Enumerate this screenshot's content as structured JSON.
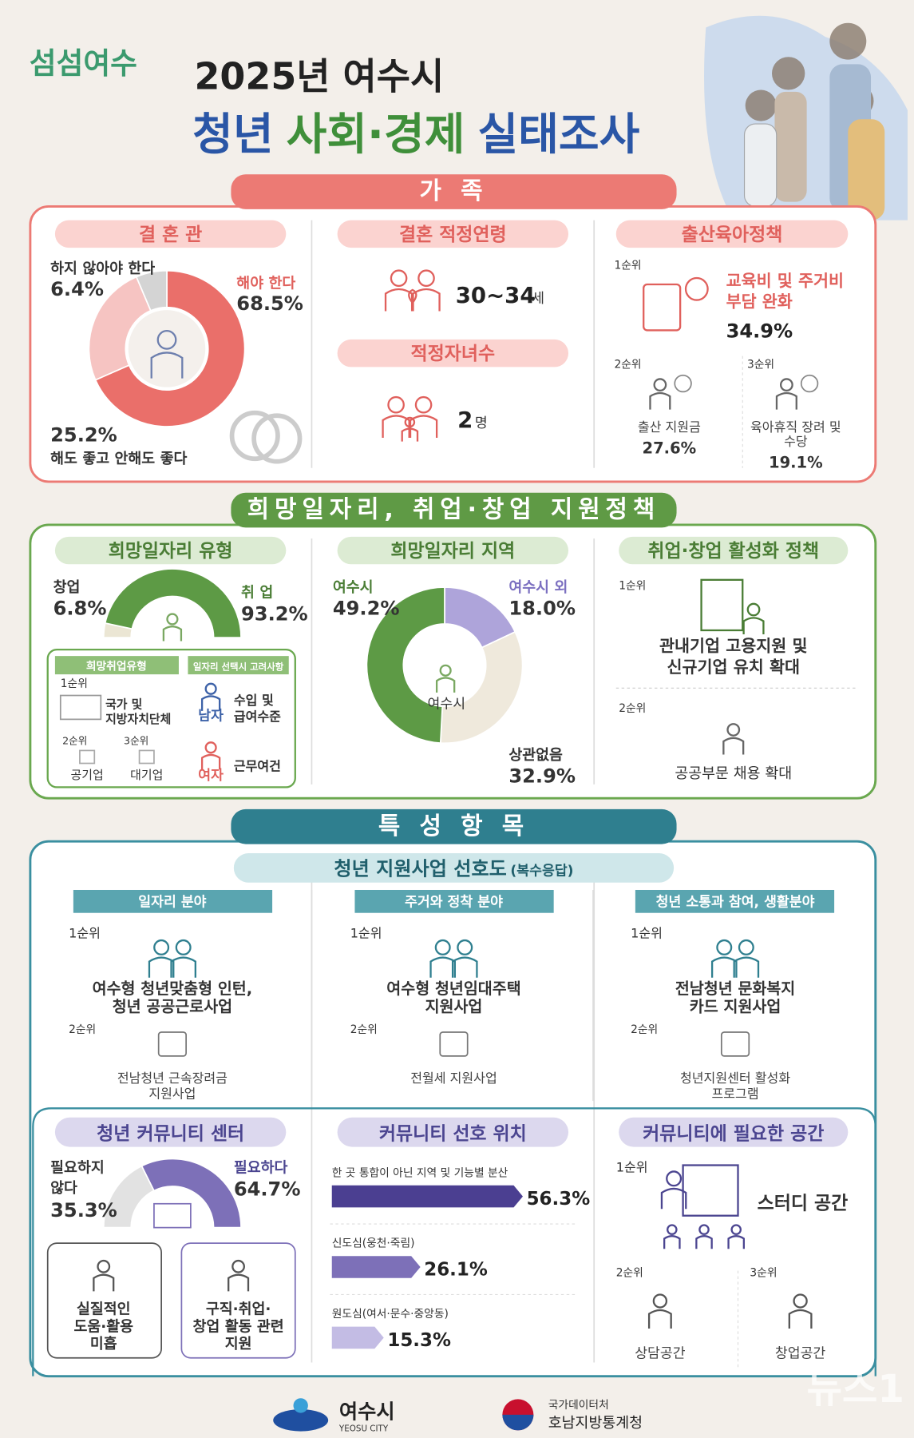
{
  "header": {
    "logo": "섬섬여수",
    "title_line1": "2025년 여수시",
    "title_line2": [
      {
        "text": "청년",
        "color": "#2a56a6"
      },
      {
        "text": "사회·경제",
        "color": "#3f8f3a"
      },
      {
        "text": "실태조사",
        "color": "#2a56a6"
      }
    ]
  },
  "family": {
    "title": "가 족",
    "marriage_view": {
      "title": "결 혼 관",
      "slices": [
        {
          "label": [
            "해야 한다"
          ],
          "value": 68.5,
          "value_label": "68.5%",
          "color": "#ea6f6a"
        },
        {
          "label": [
            "해도 좋고 안해도 좋다"
          ],
          "value": 25.2,
          "value_label": "25.2%",
          "color": "#f6c4c2"
        },
        {
          "label": [
            "하지 않아야 한다"
          ],
          "value": 6.4,
          "value_label": "6.4%",
          "color": "#d4d4d4"
        }
      ]
    },
    "marriage_age": {
      "title": "결혼 적정연령",
      "value": "30~34",
      "unit": "세"
    },
    "children": {
      "title": "적정자녀수",
      "value": 2,
      "unit": "명"
    },
    "birth_policy": {
      "title": "출산육아정책",
      "items": [
        {
          "rank": "1순위",
          "label": [
            "교육비 및 주거비",
            "부담 완화"
          ],
          "value": 34.9,
          "value_label": "34.9%"
        },
        {
          "rank": "2순위",
          "label": [
            "출산 지원금"
          ],
          "value": 27.6,
          "value_label": "27.6%"
        },
        {
          "rank": "3순위",
          "label": [
            "육아휴직 장려 및",
            "수당"
          ],
          "value": 19.1,
          "value_label": "19.1%"
        }
      ]
    }
  },
  "jobs": {
    "title": "희망일자리, 취업·창업 지원정책",
    "job_type": {
      "title": "희망일자리 유형",
      "slices": [
        {
          "label": [
            "창업"
          ],
          "value": 6.8,
          "value_label": "6.8%",
          "color": "#ebe6d4"
        },
        {
          "label": [
            "취 업"
          ],
          "value": 93.2,
          "value_label": "93.2%",
          "color": "#5d9a45"
        }
      ],
      "preferred_employer": {
        "title": "희망취업유형",
        "items": [
          {
            "rank": "1순위",
            "label": [
              "국가 및",
              "지방자치단체"
            ]
          },
          {
            "rank": "2순위",
            "label": [
              "공기업"
            ]
          },
          {
            "rank": "3순위",
            "label": [
              "대기업"
            ]
          }
        ]
      },
      "job_factors": {
        "title": "일자리 선택시 고려사항",
        "items": [
          {
            "group": "남자",
            "label": [
              "수입 및",
              "급여수준"
            ]
          },
          {
            "group": "여자",
            "label": [
              "근무여건"
            ]
          }
        ]
      }
    },
    "job_region": {
      "title": "희망일자리 지역",
      "center_label": "여수시",
      "slices": [
        {
          "label": [
            "여수시 외"
          ],
          "value": 18.0,
          "value_label": "18.0%",
          "color": "#aea4da"
        },
        {
          "label": [
            "상관없음"
          ],
          "value": 32.9,
          "value_label": "32.9%",
          "color": "#efe9dc"
        },
        {
          "label": [
            "여수시"
          ],
          "value": 49.2,
          "value_label": "49.2%",
          "color": "#5d9a45"
        }
      ]
    },
    "policy": {
      "title": "취업·창업 활성화 정책",
      "items": [
        {
          "rank": "1순위",
          "label": [
            "관내기업 고용지원 및",
            "신규기업 유치 확대"
          ]
        },
        {
          "rank": "2순위",
          "label": [
            "공공부문 채용 확대"
          ]
        }
      ]
    }
  },
  "features": {
    "title": "특 성 항 목",
    "support_preference": {
      "title": "청년 지원사업 선호도",
      "note": "(복수응답)",
      "fields": [
        {
          "name": "일자리 분야",
          "items": [
            {
              "rank": "1순위",
              "label": [
                "여수형 청년맞춤형 인턴,",
                "청년 공공근로사업"
              ]
            },
            {
              "rank": "2순위",
              "label": [
                "전남청년 근속장려금",
                "지원사업"
              ]
            }
          ]
        },
        {
          "name": "주거와 정착 분야",
          "items": [
            {
              "rank": "1순위",
              "label": [
                "여수형 청년임대주택",
                "지원사업"
              ]
            },
            {
              "rank": "2순위",
              "label": [
                "전월세 지원사업"
              ]
            }
          ]
        },
        {
          "name": "청년 소통과 참여, 생활분야",
          "items": [
            {
              "rank": "1순위",
              "label": [
                "전남청년 문화복지",
                "카드 지원사업"
              ]
            },
            {
              "rank": "2순위",
              "label": [
                "청년지원센터 활성화",
                "프로그램"
              ]
            }
          ]
        }
      ]
    },
    "community_center": {
      "title": "청년 커뮤니티 센터",
      "slices": [
        {
          "label": [
            "필요하지",
            "않다"
          ],
          "value": 35.3,
          "value_label": "35.3%",
          "color": "#e2e2e2"
        },
        {
          "label": [
            "필요하다"
          ],
          "value": 64.7,
          "value_label": "64.7%",
          "color": "#7d70b8"
        }
      ],
      "reasons": [
        [
          "실질적인",
          "도움·활용",
          "미흡"
        ],
        [
          "구직·취업·",
          "창업 활동 관련",
          "지원"
        ]
      ]
    },
    "community_location": {
      "title": "커뮤니티 선호 위치",
      "bars": [
        {
          "label": "한 곳 통합이 아닌 지역 및 기능별 분산",
          "value": 56.3,
          "value_label": "56.3%",
          "color": "#4b3f91"
        },
        {
          "label": "신도심(웅천·죽림)",
          "value": 26.1,
          "value_label": "26.1%",
          "color": "#7d70b8"
        },
        {
          "label": "원도심(여서·문수·중앙동)",
          "value": 15.3,
          "value_label": "15.3%",
          "color": "#c3bce4"
        }
      ]
    },
    "community_space": {
      "title": "커뮤니티에 필요한 공간",
      "items": [
        {
          "rank": "1순위",
          "label": "스터디 공간"
        },
        {
          "rank": "2순위",
          "label": "상담공간"
        },
        {
          "rank": "3순위",
          "label": "창업공간"
        }
      ]
    }
  },
  "footer": {
    "city": "여수시",
    "city_en": "YEOSU CITY",
    "agency_parent": "국가데이터처",
    "agency": "호남지방통계청",
    "watermark": "뉴스1"
  }
}
